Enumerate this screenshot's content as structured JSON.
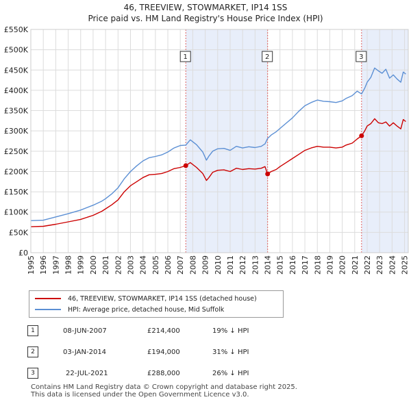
{
  "chart_data": {
    "type": "line",
    "title": "46, TREEVIEW, STOWMARKET, IP14 1SS",
    "subtitle": "Price paid vs. HM Land Registry's House Price Index (HPI)",
    "xlabel": "",
    "ylabel": "",
    "xlim": [
      1995,
      2025.3
    ],
    "ylim": [
      0,
      550000
    ],
    "x_ticks": [
      "1995",
      "1996",
      "1997",
      "1998",
      "1999",
      "2000",
      "2001",
      "2002",
      "2003",
      "2004",
      "2005",
      "2006",
      "2007",
      "2008",
      "2009",
      "2010",
      "2011",
      "2012",
      "2013",
      "2014",
      "2015",
      "2016",
      "2017",
      "2018",
      "2019",
      "2020",
      "2021",
      "2022",
      "2023",
      "2024",
      "2025"
    ],
    "y_ticks": [
      {
        "value": 0,
        "label": "£0"
      },
      {
        "value": 50000,
        "label": "£50K"
      },
      {
        "value": 100000,
        "label": "£100K"
      },
      {
        "value": 150000,
        "label": "£150K"
      },
      {
        "value": 200000,
        "label": "£200K"
      },
      {
        "value": 250000,
        "label": "£250K"
      },
      {
        "value": 300000,
        "label": "£300K"
      },
      {
        "value": 350000,
        "label": "£350K"
      },
      {
        "value": 400000,
        "label": "£400K"
      },
      {
        "value": 450000,
        "label": "£450K"
      },
      {
        "value": 500000,
        "label": "£500K"
      },
      {
        "value": 550000,
        "label": "£550K"
      }
    ],
    "grid": true,
    "series": [
      {
        "name": "46, TREEVIEW, STOWMARKET, IP14 1SS (detached house)",
        "color": "#cc0000",
        "x": [
          1995.0,
          1996.0,
          1997.0,
          1998.0,
          1999.0,
          2000.0,
          2000.7,
          2001.0,
          2001.5,
          2002.0,
          2002.5,
          2003.0,
          2003.5,
          2004.0,
          2004.5,
          2005.0,
          2005.5,
          2006.0,
          2006.5,
          2007.0,
          2007.44,
          2007.8,
          2008.3,
          2008.8,
          2009.1,
          2009.3,
          2009.6,
          2010.0,
          2010.5,
          2011.0,
          2011.5,
          2012.0,
          2012.5,
          2013.0,
          2013.5,
          2013.8,
          2014.0,
          2014.3,
          2014.7,
          2015.0,
          2015.5,
          2016.0,
          2016.5,
          2017.0,
          2017.5,
          2018.0,
          2018.5,
          2019.0,
          2019.5,
          2020.0,
          2020.3,
          2020.8,
          2021.2,
          2021.55,
          2021.8,
          2022.0,
          2022.3,
          2022.6,
          2022.9,
          2023.2,
          2023.5,
          2023.8,
          2024.1,
          2024.4,
          2024.7,
          2024.9,
          2025.1
        ],
        "y": [
          64000,
          65000,
          70000,
          76000,
          82000,
          92000,
          102000,
          108000,
          118000,
          130000,
          150000,
          165000,
          175000,
          185000,
          192000,
          193000,
          195000,
          200000,
          207000,
          210000,
          214400,
          222000,
          210000,
          195000,
          178000,
          185000,
          198000,
          203000,
          204000,
          200000,
          208000,
          205000,
          207000,
          206000,
          208000,
          212000,
          194000,
          200000,
          205000,
          212000,
          222000,
          232000,
          242000,
          252000,
          258000,
          262000,
          260000,
          260000,
          258000,
          260000,
          265000,
          270000,
          280000,
          288000,
          300000,
          312000,
          318000,
          330000,
          320000,
          318000,
          322000,
          312000,
          320000,
          312000,
          305000,
          328000,
          323000
        ]
      },
      {
        "name": "HPI: Average price, detached house, Mid Suffolk",
        "color": "#5b8fd4",
        "x": [
          1995.0,
          1996.0,
          1997.0,
          1998.0,
          1999.0,
          2000.0,
          2000.7,
          2001.0,
          2001.5,
          2002.0,
          2002.5,
          2003.0,
          2003.5,
          2004.0,
          2004.5,
          2005.0,
          2005.5,
          2006.0,
          2006.5,
          2007.0,
          2007.44,
          2007.8,
          2008.3,
          2008.8,
          2009.1,
          2009.3,
          2009.6,
          2010.0,
          2010.5,
          2011.0,
          2011.5,
          2012.0,
          2012.5,
          2013.0,
          2013.5,
          2013.8,
          2014.0,
          2014.3,
          2014.7,
          2015.0,
          2015.5,
          2016.0,
          2016.5,
          2017.0,
          2017.5,
          2018.0,
          2018.5,
          2019.0,
          2019.5,
          2020.0,
          2020.3,
          2020.8,
          2021.2,
          2021.55,
          2021.8,
          2022.0,
          2022.3,
          2022.6,
          2022.9,
          2023.2,
          2023.5,
          2023.8,
          2024.1,
          2024.4,
          2024.7,
          2024.9,
          2025.1
        ],
        "y": [
          79000,
          80000,
          88000,
          96000,
          105000,
          117000,
          127000,
          133000,
          145000,
          160000,
          182000,
          200000,
          214000,
          226000,
          234000,
          237000,
          241000,
          248000,
          258000,
          264000,
          265000,
          278000,
          266000,
          248000,
          228000,
          238000,
          250000,
          256000,
          257000,
          252000,
          262000,
          258000,
          261000,
          259000,
          262000,
          268000,
          281000,
          290000,
          298000,
          306000,
          319000,
          332000,
          348000,
          362000,
          370000,
          376000,
          373000,
          372000,
          370000,
          374000,
          380000,
          387000,
          398000,
          391000,
          405000,
          420000,
          432000,
          455000,
          448000,
          442000,
          452000,
          430000,
          438000,
          428000,
          420000,
          445000,
          440000
        ]
      }
    ],
    "sales": [
      {
        "num": "1",
        "x": 2007.44,
        "price": 214400
      },
      {
        "num": "2",
        "x": 2014.01,
        "price": 194000
      },
      {
        "num": "3",
        "x": 2021.55,
        "price": 288000
      }
    ],
    "shade_color": "#e8eefa",
    "marker_line_color": "#e06060"
  },
  "legend": {
    "red_label": "46, TREEVIEW, STOWMARKET, IP14 1SS (detached house)",
    "blue_label": "HPI: Average price, detached house, Mid Suffolk"
  },
  "transactions": [
    {
      "num": "1",
      "date": "08-JUN-2007",
      "price": "£214,400",
      "delta": "19% ↓ HPI"
    },
    {
      "num": "2",
      "date": "03-JAN-2014",
      "price": "£194,000",
      "delta": "31% ↓ HPI"
    },
    {
      "num": "3",
      "date": "22-JUL-2021",
      "price": "£288,000",
      "delta": "26% ↓ HPI"
    }
  ],
  "footer": {
    "line1": "Contains HM Land Registry data © Crown copyright and database right 2025.",
    "line2": "This data is licensed under the Open Government Licence v3.0."
  }
}
